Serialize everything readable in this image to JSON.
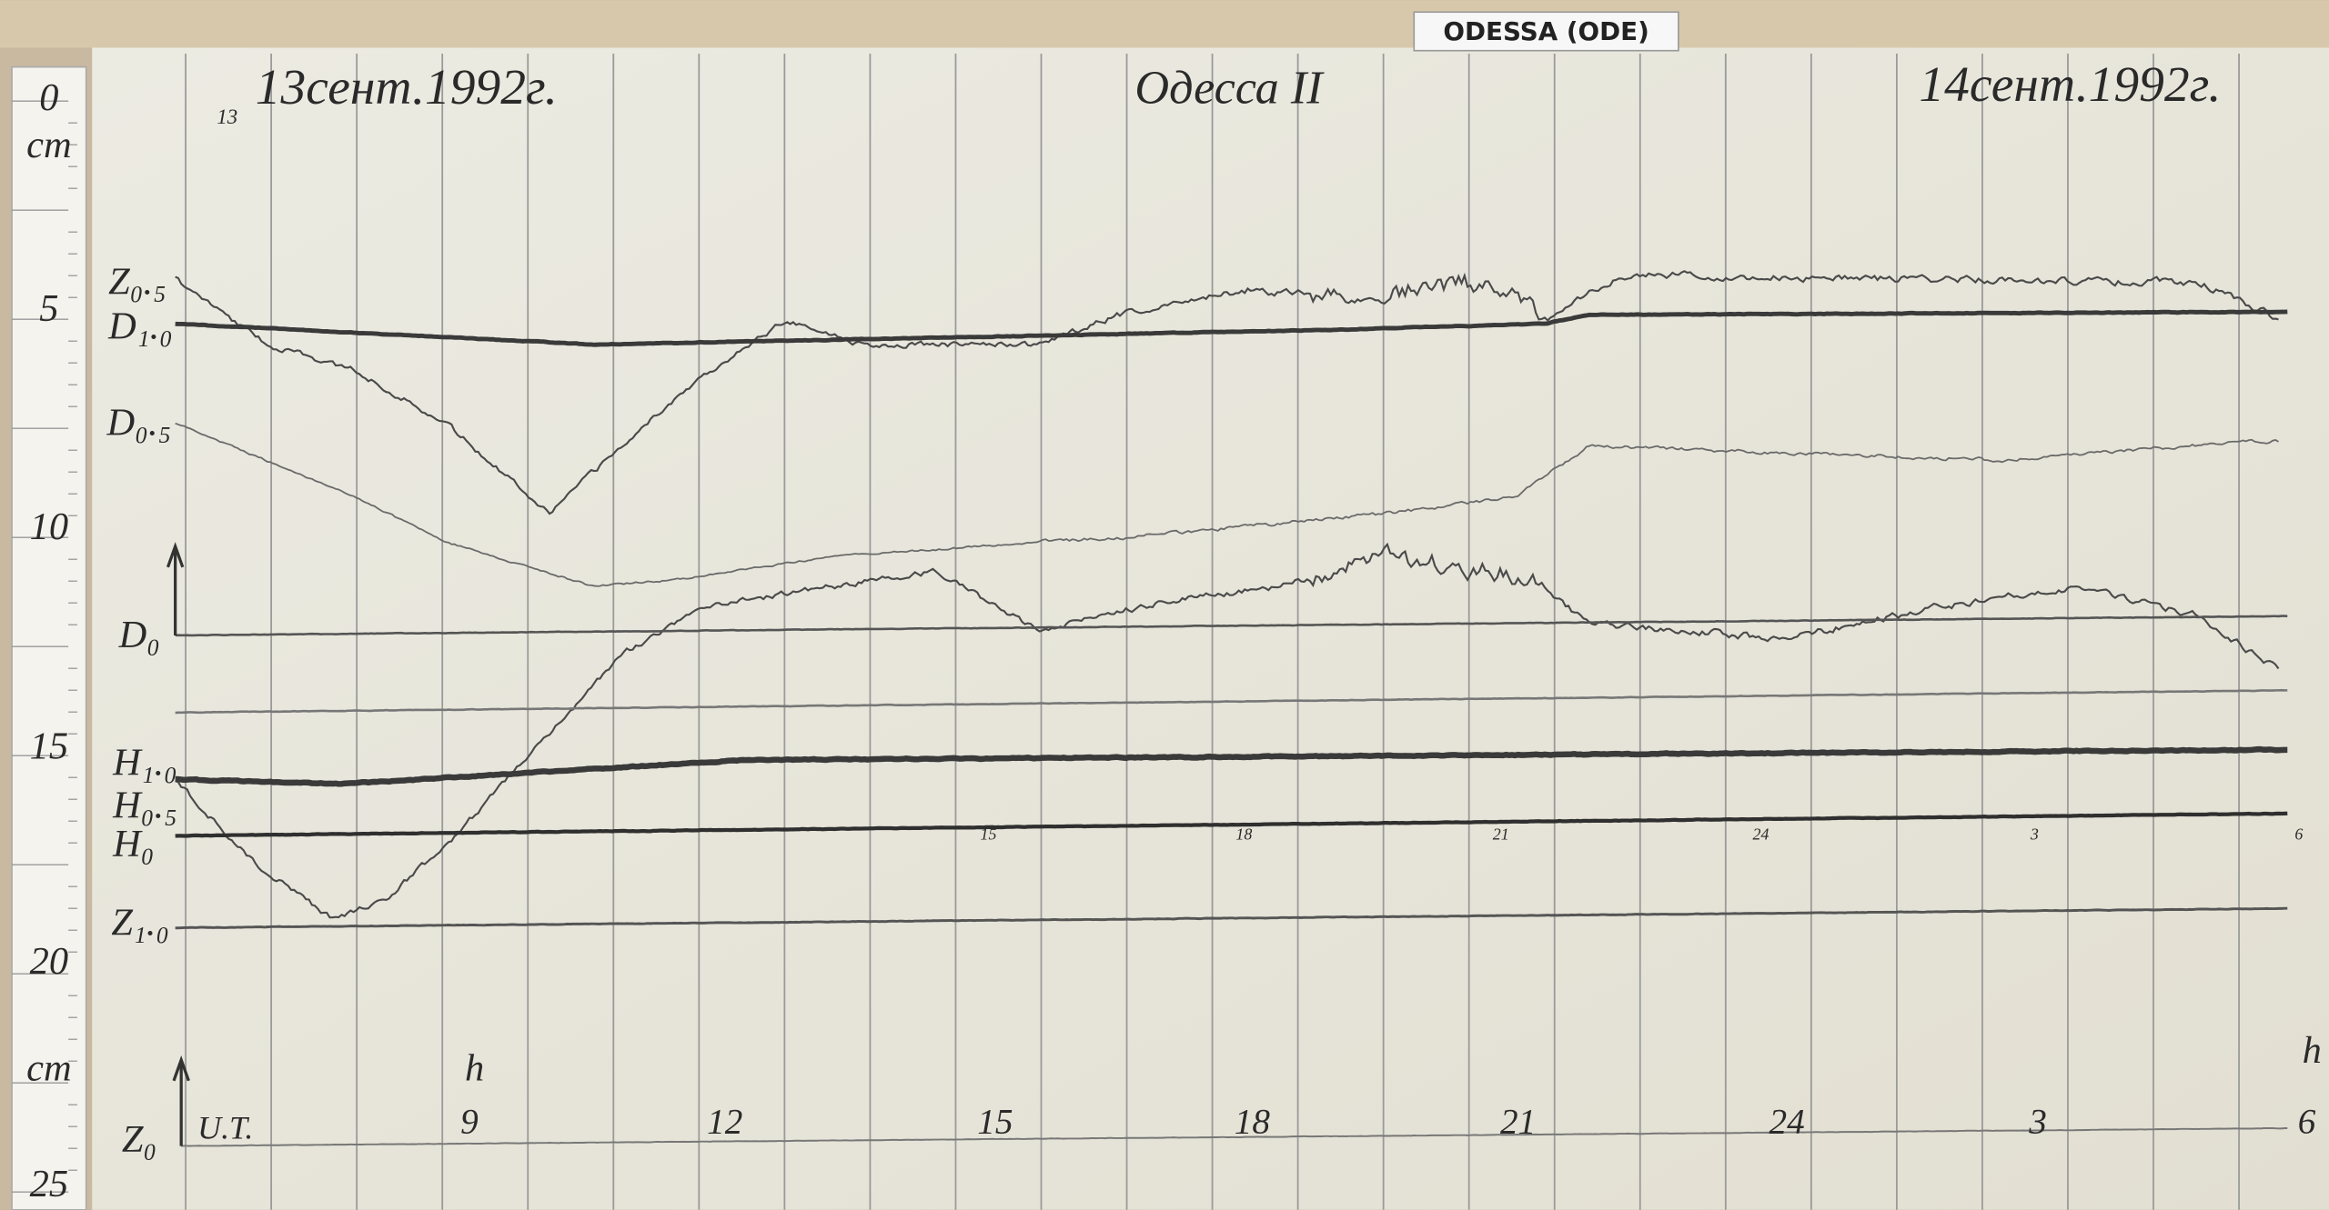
{
  "label_tag": "ODESSA (ODE)",
  "header": {
    "sheet_number": "13",
    "left_date": "13сент.1992г.",
    "station": "Одесса II",
    "right_date": "14сент.1992г."
  },
  "ruler": {
    "labels": [
      "0",
      "cm",
      "5",
      "10",
      "15",
      "20",
      "cm",
      "25"
    ]
  },
  "traces": {
    "labels": [
      "Z₀.₅",
      "D₁.₀",
      "D₀.₅",
      "D₀",
      "H₁.₀",
      "H₀.₅",
      "H₀",
      "Z₁.₀"
    ]
  },
  "h0_line_marks": [
    "15",
    "18",
    "21",
    "24",
    "3",
    "6"
  ],
  "time_axis": {
    "unit_start": "h",
    "labels": [
      "9",
      "12",
      "15",
      "18",
      "21",
      "24",
      "3",
      "6"
    ],
    "unit_end": "h",
    "baseline_label": "Z₀",
    "time_label": "U.T."
  }
}
